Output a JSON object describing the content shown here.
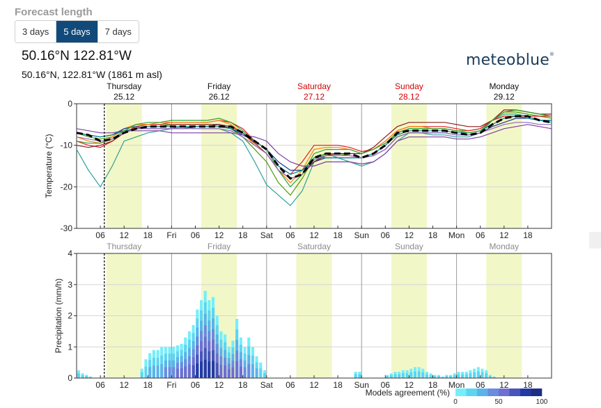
{
  "forecast": {
    "label": "Forecast length",
    "options": [
      "3 days",
      "5 days",
      "7 days"
    ],
    "selected": "5 days"
  },
  "location": {
    "title": "50.16°N 122.81°W",
    "subtitle": "50.16°N, 122.81°W (1861 m asl)"
  },
  "brand": {
    "name": "meteoblue",
    "mark": "®"
  },
  "colors": {
    "day_band": "#f2f7c8",
    "weekend_date": "#d40000",
    "mean_line": "#000000",
    "agreement_scale": [
      "#74eefb",
      "#5cd5f2",
      "#5ab3ea",
      "#6a8be0",
      "#6e6fd0",
      "#4854bb",
      "#233aa4",
      "#1c2f86"
    ]
  },
  "chart_data": [
    {
      "type": "line",
      "ylabel": "Temperature (°C)",
      "ylim": [
        -30,
        0
      ],
      "yticks": [
        0,
        -10,
        -20,
        -30
      ],
      "x_range_hours": [
        0,
        120
      ],
      "xticks": [
        {
          "h": 6,
          "label": "06"
        },
        {
          "h": 12,
          "label": "12"
        },
        {
          "h": 18,
          "label": "18"
        },
        {
          "h": 24,
          "label": "Fri"
        },
        {
          "h": 30,
          "label": "06"
        },
        {
          "h": 36,
          "label": "12"
        },
        {
          "h": 42,
          "label": "18"
        },
        {
          "h": 48,
          "label": "Sat"
        },
        {
          "h": 54,
          "label": "06"
        },
        {
          "h": 60,
          "label": "12"
        },
        {
          "h": 66,
          "label": "18"
        },
        {
          "h": 72,
          "label": "Sun"
        },
        {
          "h": 78,
          "label": "06"
        },
        {
          "h": 84,
          "label": "12"
        },
        {
          "h": 90,
          "label": "18"
        },
        {
          "h": 96,
          "label": "Mon"
        },
        {
          "h": 102,
          "label": "06"
        },
        {
          "h": 108,
          "label": "12"
        },
        {
          "h": 114,
          "label": "18"
        }
      ],
      "day_headers": [
        {
          "h": 12,
          "name": "Thursday",
          "date": "25.12",
          "weekend": false
        },
        {
          "h": 36,
          "name": "Friday",
          "date": "26.12",
          "weekend": false
        },
        {
          "h": 60,
          "name": "Saturday",
          "date": "27.12",
          "weekend": true
        },
        {
          "h": 84,
          "name": "Sunday",
          "date": "28.12",
          "weekend": true
        },
        {
          "h": 108,
          "name": "Monday",
          "date": "29.12",
          "weekend": false
        }
      ],
      "day_bands": [
        [
          7.5,
          16.5
        ],
        [
          31.5,
          40.5
        ],
        [
          55.5,
          64.5
        ],
        [
          79.5,
          88.5
        ],
        [
          103.5,
          112.5
        ]
      ],
      "day_lines": [
        24,
        48,
        72,
        96
      ],
      "now_hour": 7,
      "mean": {
        "x": [
          0,
          3,
          6,
          9,
          12,
          15,
          18,
          21,
          24,
          27,
          30,
          33,
          36,
          39,
          42,
          45,
          48,
          51,
          54,
          57,
          60,
          63,
          66,
          69,
          72,
          75,
          78,
          81,
          84,
          87,
          90,
          93,
          96,
          99,
          102,
          105,
          108,
          111,
          114,
          117,
          120
        ],
        "y": [
          -7,
          -7.5,
          -9,
          -8.5,
          -7,
          -6,
          -5.5,
          -5.5,
          -5.5,
          -5.5,
          -5.5,
          -5.5,
          -5.5,
          -5.5,
          -7,
          -9,
          -11,
          -15,
          -18,
          -17,
          -13,
          -12,
          -12,
          -12,
          -13,
          -12,
          -10,
          -7,
          -6.5,
          -6.5,
          -6.5,
          -6.5,
          -7,
          -7.5,
          -7,
          -5,
          -3.5,
          -3,
          -3,
          -4,
          -4.5
        ]
      },
      "members": [
        {
          "color": "#2aa198",
          "y": [
            -11,
            -16,
            -20,
            -15,
            -9,
            -8,
            -7,
            -6.5,
            -6,
            -5.5,
            -6,
            -6,
            -6,
            -7,
            -9,
            -14,
            -19.5,
            -22,
            -24.5,
            -21,
            -14,
            -12,
            -13,
            -14,
            -15,
            -14,
            -12,
            -9,
            -7,
            -7,
            -7.5,
            -7.5,
            -8,
            -8,
            -7,
            -4,
            -2.5,
            -2.5,
            -3,
            -4,
            -4.5
          ]
        },
        {
          "color": "#4e9a06",
          "y": [
            -7,
            -8,
            -8.5,
            -8,
            -6,
            -5,
            -5,
            -5,
            -5,
            -5,
            -5,
            -5,
            -5,
            -6,
            -8,
            -11,
            -14,
            -19,
            -22,
            -18,
            -13,
            -12,
            -12,
            -12.5,
            -13,
            -12,
            -10,
            -7,
            -6,
            -6,
            -6,
            -6,
            -6.5,
            -6.5,
            -6,
            -4,
            -2,
            -2,
            -2.5,
            -3,
            -3.5
          ]
        },
        {
          "color": "#e41a1c",
          "y": [
            -9,
            -10,
            -10.5,
            -9,
            -7,
            -5.5,
            -5,
            -5,
            -4.5,
            -4.5,
            -4.5,
            -4.5,
            -4,
            -4.5,
            -6,
            -9,
            -11,
            -15,
            -17,
            -14,
            -10,
            -10,
            -10,
            -10.5,
            -11.5,
            -11,
            -9,
            -6.5,
            -5.5,
            -5.5,
            -5.5,
            -5.5,
            -6,
            -6.5,
            -6,
            -4,
            -3,
            -3,
            -3,
            -3,
            -3
          ]
        },
        {
          "color": "#ff7f0e",
          "y": [
            -8,
            -9,
            -9.5,
            -8,
            -6,
            -5,
            -5,
            -4.5,
            -4.5,
            -4.5,
            -4.5,
            -4.5,
            -4,
            -5,
            -7,
            -10,
            -12,
            -16,
            -19,
            -16,
            -11,
            -10.5,
            -10.5,
            -11,
            -12,
            -11,
            -9,
            -6.5,
            -5.5,
            -5.5,
            -6,
            -6,
            -6.5,
            -7,
            -6.5,
            -4,
            -2,
            -1.5,
            -2,
            -2.5,
            -3
          ]
        },
        {
          "color": "#1f3a93",
          "y": [
            -7,
            -7.5,
            -8,
            -7.5,
            -6,
            -5.5,
            -6,
            -6,
            -6,
            -6,
            -5.5,
            -5.5,
            -5,
            -6,
            -7.5,
            -9,
            -11,
            -14,
            -16,
            -16,
            -14,
            -13,
            -13,
            -13,
            -13,
            -12.5,
            -11,
            -8,
            -7,
            -7,
            -7,
            -7,
            -7.5,
            -7.5,
            -7,
            -5.5,
            -4.5,
            -3.5,
            -3.5,
            -4,
            -4
          ]
        },
        {
          "color": "#8b1a1a",
          "y": [
            -10,
            -10.5,
            -10,
            -9,
            -7,
            -6,
            -5.5,
            -5.5,
            -5,
            -5,
            -5,
            -5,
            -5,
            -5.5,
            -7,
            -9.5,
            -12,
            -16,
            -18,
            -17,
            -14,
            -12.5,
            -12,
            -12,
            -12,
            -10.5,
            -8,
            -5.5,
            -4.5,
            -4.5,
            -4.5,
            -4.5,
            -5,
            -5.5,
            -5.5,
            -4,
            -1.5,
            -1.5,
            -2,
            -2.5,
            -2.5
          ]
        },
        {
          "color": "#7b3fa0",
          "y": [
            -6,
            -6.5,
            -7,
            -7,
            -6.5,
            -6.5,
            -6.5,
            -6.5,
            -7,
            -7,
            -7,
            -7,
            -7,
            -7,
            -7.5,
            -8,
            -9,
            -12,
            -14,
            -15,
            -15,
            -14,
            -14,
            -14,
            -14.5,
            -14,
            -12,
            -9,
            -8,
            -8,
            -8,
            -8,
            -8.5,
            -8.5,
            -8,
            -7,
            -6,
            -5.5,
            -5,
            -5.5,
            -6
          ]
        },
        {
          "color": "#00838f",
          "y": [
            -7,
            -7.5,
            -8,
            -7.5,
            -6.5,
            -6,
            -5.5,
            -5.5,
            -5.5,
            -5.5,
            -5.5,
            -5.5,
            -5.5,
            -6,
            -7,
            -9,
            -11,
            -15,
            -17,
            -16,
            -13,
            -13,
            -13,
            -13,
            -13,
            -12,
            -10,
            -7.5,
            -6.5,
            -6.5,
            -6.5,
            -6.5,
            -7,
            -7,
            -6.5,
            -5,
            -3.5,
            -3,
            -3.5,
            -4,
            -4
          ]
        },
        {
          "color": "#2ca02c",
          "y": [
            -9,
            -9.5,
            -9.5,
            -8.5,
            -6.5,
            -5,
            -4.5,
            -4.5,
            -4,
            -4,
            -4,
            -4,
            -3.5,
            -4.5,
            -6.5,
            -9,
            -11,
            -16,
            -20,
            -17,
            -12,
            -11,
            -11,
            -11,
            -12,
            -11,
            -9.5,
            -7,
            -6,
            -6,
            -6,
            -6,
            -6.5,
            -7,
            -6.5,
            -4,
            -2,
            -1.5,
            -2,
            -2.5,
            -3
          ]
        },
        {
          "color": "#9467bd",
          "y": [
            -8,
            -8.5,
            -9,
            -8.5,
            -7,
            -6,
            -6,
            -6,
            -6,
            -6,
            -6,
            -6,
            -6,
            -6.5,
            -8,
            -10,
            -12,
            -16,
            -18,
            -17,
            -13.5,
            -12.5,
            -12.5,
            -12.5,
            -13,
            -12.5,
            -11,
            -8,
            -7,
            -7,
            -7,
            -7,
            -7.5,
            -7.5,
            -7,
            -6,
            -5,
            -4.5,
            -4.5,
            -5,
            -5
          ]
        }
      ]
    },
    {
      "type": "bar",
      "ylabel": "Precipitation (mm/h)",
      "ylim": [
        0,
        4
      ],
      "yticks": [
        0,
        1,
        2,
        3,
        4
      ],
      "x_range_hours": [
        0,
        120
      ],
      "xticks_same_as_above": true,
      "day_names": [
        "Thursday",
        "Friday",
        "Saturday",
        "Sunday",
        "Monday"
      ],
      "bars": {
        "hour": [
          0,
          1,
          2,
          3,
          16,
          17,
          18,
          19,
          20,
          21,
          22,
          23,
          24,
          25,
          26,
          27,
          28,
          29,
          30,
          31,
          32,
          33,
          34,
          35,
          36,
          37,
          38,
          39,
          40,
          41,
          42,
          43,
          44,
          45,
          46,
          47,
          70,
          71,
          78,
          79,
          80,
          81,
          82,
          83,
          84,
          85,
          86,
          87,
          88,
          89,
          90,
          91,
          92,
          93,
          94,
          95,
          96,
          97,
          98,
          99,
          100,
          101,
          102,
          103,
          104,
          105
        ],
        "value": [
          0.25,
          0.15,
          0.1,
          0.05,
          0.3,
          0.6,
          0.8,
          0.9,
          0.9,
          1.0,
          1.0,
          1.0,
          1.0,
          1.05,
          1.1,
          1.3,
          1.5,
          1.7,
          2.2,
          2.5,
          2.8,
          2.5,
          2.6,
          2.0,
          1.5,
          1.4,
          1.0,
          1.2,
          1.9,
          1.3,
          1.0,
          1.3,
          1.0,
          0.7,
          0.5,
          0.25,
          0.2,
          0.2,
          0.1,
          0.15,
          0.2,
          0.2,
          0.25,
          0.25,
          0.3,
          0.35,
          0.35,
          0.3,
          0.2,
          0.15,
          0.1,
          0.1,
          0.05,
          0.1,
          0.1,
          0.15,
          0.2,
          0.2,
          0.2,
          0.25,
          0.3,
          0.35,
          0.3,
          0.25,
          0.1,
          0.05
        ],
        "agreement": [
          10,
          10,
          5,
          5,
          20,
          20,
          30,
          30,
          30,
          30,
          40,
          40,
          40,
          50,
          50,
          60,
          60,
          70,
          80,
          80,
          90,
          80,
          80,
          70,
          60,
          60,
          50,
          50,
          60,
          50,
          40,
          40,
          30,
          30,
          20,
          20,
          10,
          10,
          5,
          5,
          10,
          10,
          10,
          10,
          10,
          10,
          10,
          10,
          10,
          5,
          5,
          5,
          5,
          5,
          5,
          5,
          10,
          10,
          10,
          10,
          10,
          10,
          10,
          10,
          5,
          5
        ]
      },
      "legend": {
        "title": "Models agreement (%)",
        "ticks": [
          "0",
          "50",
          "100"
        ]
      }
    }
  ]
}
